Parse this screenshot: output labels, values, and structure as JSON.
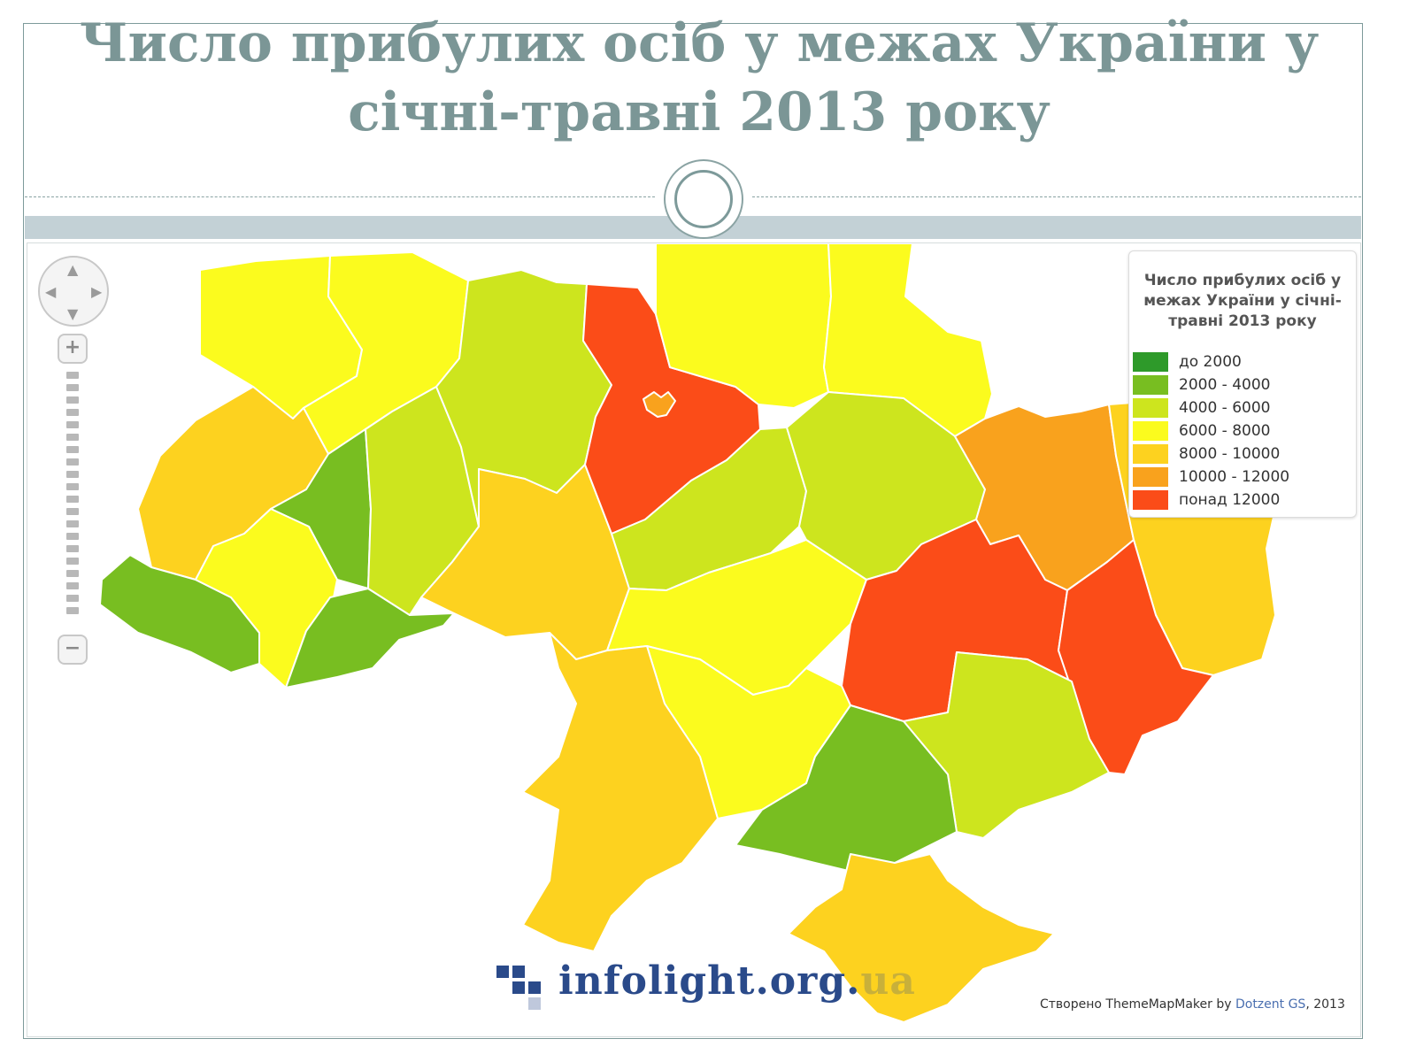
{
  "slide": {
    "title_line1": "Число прибулих осіб у межах України у",
    "title_line2": "січні-травні 2013 року",
    "title_color": "#7b9696"
  },
  "map": {
    "legend": {
      "title_line1": "Число прибулих осіб у",
      "title_line2": "межах України у січні-",
      "title_line3": "травні 2013 року",
      "classes": [
        {
          "label": "до 2000",
          "color": "#2e9a2a"
        },
        {
          "label": "2000 - 4000",
          "color": "#78be21"
        },
        {
          "label": "4000 - 6000",
          "color": "#cde51e"
        },
        {
          "label": "6000 - 8000",
          "color": "#fbfb1e"
        },
        {
          "label": "8000 - 10000",
          "color": "#fdd21f"
        },
        {
          "label": "10000 - 12000",
          "color": "#f9a21d"
        },
        {
          "label": "понад 12000",
          "color": "#fb4c18"
        }
      ]
    },
    "controls": {
      "zoom_in_label": "+",
      "zoom_out_label": "−",
      "pan_up_icon": "chevron-up-icon",
      "pan_down_icon": "chevron-down-icon",
      "pan_left_icon": "chevron-left-icon",
      "pan_right_icon": "chevron-right-icon"
    },
    "credit": {
      "prefix": "Створено ThemeMapMaker by",
      "author": "Dotzent GS",
      "suffix": ", 2013"
    },
    "watermark": {
      "text": "infolight.org.",
      "faded_suffix": "ua"
    }
  }
}
